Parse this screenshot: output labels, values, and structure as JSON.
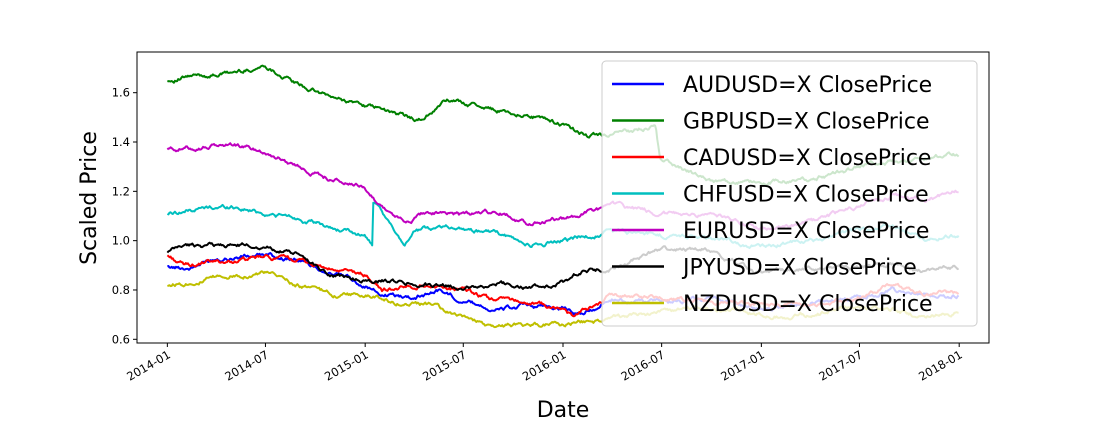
{
  "chart_data": {
    "type": "line",
    "xlabel": "Date",
    "ylabel": "Scaled Price",
    "xlim": [
      "2013-11-06",
      "2018-02-25"
    ],
    "ylim": [
      0.585,
      1.765
    ],
    "x_ticks": [
      "2014-01",
      "2014-07",
      "2015-01",
      "2015-07",
      "2016-01",
      "2016-07",
      "2017-01",
      "2017-07",
      "2018-01"
    ],
    "x_tick_dates": [
      "2014-01-01",
      "2014-07-01",
      "2015-01-01",
      "2015-07-01",
      "2016-01-01",
      "2016-07-01",
      "2017-01-01",
      "2017-07-01",
      "2018-01-01"
    ],
    "y_ticks": [
      0.6,
      0.8,
      1.0,
      1.2,
      1.4,
      1.6
    ],
    "y_tick_labels": [
      "0.6",
      "0.8",
      "1.0",
      "1.2",
      "1.4",
      "1.6"
    ],
    "grid": false,
    "legend_position": "top-right",
    "series": [
      {
        "name": "AUDUSD=X ClosePrice",
        "color": "#0000ff",
        "dates": [
          "2014-01-01",
          "2014-02-15",
          "2014-04-01",
          "2014-07-01",
          "2014-09-01",
          "2014-11-01",
          "2015-01-01",
          "2015-02-01",
          "2015-04-01",
          "2015-05-15",
          "2015-07-01",
          "2015-09-01",
          "2015-10-15",
          "2016-01-01",
          "2016-02-01",
          "2016-04-01",
          "2016-07-01",
          "2016-10-01",
          "2017-01-01",
          "2017-04-01",
          "2017-07-01",
          "2017-09-01",
          "2017-11-01",
          "2018-01-01"
        ],
        "values": [
          0.89,
          0.89,
          0.93,
          0.94,
          0.92,
          0.87,
          0.82,
          0.78,
          0.77,
          0.8,
          0.76,
          0.72,
          0.73,
          0.73,
          0.7,
          0.76,
          0.75,
          0.77,
          0.72,
          0.75,
          0.77,
          0.8,
          0.77,
          0.78
        ]
      },
      {
        "name": "GBPUSD=X ClosePrice",
        "color": "#008000",
        "dates": [
          "2014-01-01",
          "2014-02-01",
          "2014-05-01",
          "2014-07-01",
          "2014-09-01",
          "2014-11-01",
          "2015-01-01",
          "2015-03-01",
          "2015-04-15",
          "2015-06-01",
          "2015-07-01",
          "2015-09-01",
          "2015-11-01",
          "2016-01-01",
          "2016-02-15",
          "2016-04-01",
          "2016-06-20",
          "2016-06-28",
          "2016-10-01",
          "2017-01-01",
          "2017-04-01",
          "2017-07-01",
          "2017-09-01",
          "2018-01-01"
        ],
        "values": [
          1.65,
          1.66,
          1.68,
          1.71,
          1.63,
          1.58,
          1.55,
          1.51,
          1.49,
          1.57,
          1.56,
          1.53,
          1.51,
          1.47,
          1.42,
          1.43,
          1.46,
          1.33,
          1.24,
          1.23,
          1.25,
          1.3,
          1.32,
          1.35
        ]
      },
      {
        "name": "CADUSD=X ClosePrice",
        "color": "#ff0000",
        "dates": [
          "2014-01-01",
          "2014-02-01",
          "2014-04-01",
          "2014-07-01",
          "2014-09-01",
          "2014-11-01",
          "2015-01-01",
          "2015-02-01",
          "2015-05-01",
          "2015-07-01",
          "2015-08-15",
          "2015-10-01",
          "2016-01-01",
          "2016-01-20",
          "2016-04-01",
          "2016-07-01",
          "2016-10-01",
          "2017-01-01",
          "2017-04-01",
          "2017-07-01",
          "2017-09-01",
          "2017-11-01",
          "2018-01-01"
        ],
        "values": [
          0.94,
          0.9,
          0.91,
          0.93,
          0.92,
          0.88,
          0.86,
          0.8,
          0.82,
          0.8,
          0.76,
          0.76,
          0.72,
          0.69,
          0.78,
          0.77,
          0.75,
          0.74,
          0.74,
          0.77,
          0.82,
          0.78,
          0.79
        ]
      },
      {
        "name": "CHFUSD=X ClosePrice",
        "color": "#00bfbf",
        "dates": [
          "2014-01-01",
          "2014-03-01",
          "2014-05-01",
          "2014-07-01",
          "2014-09-01",
          "2014-11-01",
          "2015-01-01",
          "2015-01-14",
          "2015-01-15",
          "2015-02-15",
          "2015-03-15",
          "2015-04-01",
          "2015-06-01",
          "2015-07-01",
          "2015-09-01",
          "2015-11-01",
          "2016-01-01",
          "2016-04-01",
          "2016-07-01",
          "2016-10-01",
          "2017-01-01",
          "2017-04-01",
          "2017-07-01",
          "2017-09-01",
          "2017-11-01",
          "2018-01-01"
        ],
        "values": [
          1.11,
          1.13,
          1.14,
          1.11,
          1.09,
          1.05,
          1.02,
          0.98,
          1.16,
          1.06,
          0.99,
          1.04,
          1.06,
          1.05,
          1.03,
          0.98,
          1.0,
          1.04,
          1.02,
          1.01,
          0.98,
          1.0,
          1.04,
          1.06,
          1.0,
          1.02
        ]
      },
      {
        "name": "EURUSD=X ClosePrice",
        "color": "#bf00bf",
        "dates": [
          "2014-01-01",
          "2014-03-01",
          "2014-05-01",
          "2014-07-01",
          "2014-09-01",
          "2014-11-01",
          "2015-01-01",
          "2015-02-01",
          "2015-03-15",
          "2015-05-01",
          "2015-07-01",
          "2015-09-01",
          "2015-11-01",
          "2016-01-01",
          "2016-04-01",
          "2016-07-01",
          "2016-10-01",
          "2017-01-01",
          "2017-04-01",
          "2017-07-01",
          "2017-09-01",
          "2017-11-01",
          "2018-01-01"
        ],
        "values": [
          1.37,
          1.38,
          1.39,
          1.36,
          1.3,
          1.25,
          1.21,
          1.14,
          1.07,
          1.12,
          1.1,
          1.12,
          1.07,
          1.09,
          1.14,
          1.11,
          1.1,
          1.05,
          1.07,
          1.14,
          1.19,
          1.16,
          1.2
        ]
      },
      {
        "name": "JPYUSD=X ClosePrice",
        "color": "#000000",
        "dates": [
          "2014-01-01",
          "2014-02-01",
          "2014-04-01",
          "2014-07-01",
          "2014-09-01",
          "2014-11-01",
          "2015-01-01",
          "2015-04-01",
          "2015-07-01",
          "2015-09-01",
          "2015-11-01",
          "2016-01-01",
          "2016-02-15",
          "2016-04-01",
          "2016-07-01",
          "2016-10-01",
          "2017-01-01",
          "2017-04-01",
          "2017-07-01",
          "2017-09-01",
          "2017-11-01",
          "2018-01-01"
        ],
        "values": [
          0.95,
          0.98,
          0.98,
          0.98,
          0.94,
          0.86,
          0.84,
          0.83,
          0.81,
          0.83,
          0.81,
          0.83,
          0.88,
          0.89,
          0.97,
          0.96,
          0.86,
          0.89,
          0.89,
          0.91,
          0.88,
          0.89
        ]
      },
      {
        "name": "NZDUSD=X ClosePrice",
        "color": "#bfbf00",
        "dates": [
          "2014-01-01",
          "2014-03-01",
          "2014-05-01",
          "2014-07-01",
          "2014-09-01",
          "2014-11-01",
          "2015-01-01",
          "2015-03-01",
          "2015-05-01",
          "2015-07-01",
          "2015-09-01",
          "2015-11-01",
          "2016-01-01",
          "2016-04-01",
          "2016-07-01",
          "2016-10-01",
          "2017-01-01",
          "2017-04-01",
          "2017-07-01",
          "2017-09-01",
          "2017-11-01",
          "2018-01-01"
        ],
        "values": [
          0.82,
          0.84,
          0.86,
          0.87,
          0.82,
          0.78,
          0.78,
          0.75,
          0.74,
          0.68,
          0.65,
          0.66,
          0.66,
          0.68,
          0.71,
          0.72,
          0.7,
          0.7,
          0.73,
          0.72,
          0.69,
          0.71
        ]
      }
    ]
  }
}
